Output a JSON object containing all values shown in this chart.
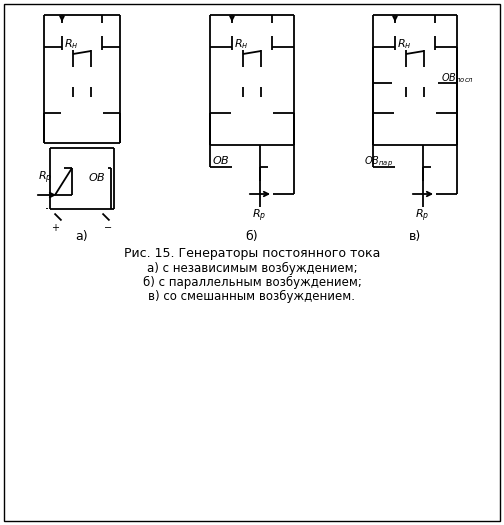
{
  "title": "Рис. 15. Генераторы постоянного тока",
  "caption_lines": [
    "а) с независимым возбуждением;",
    "б) с параллельным возбуждением;",
    "в) со смешанным возбуждением."
  ],
  "sublabels": [
    "а)",
    "б)",
    "в)"
  ],
  "bg_color": "#ffffff",
  "line_color": "#000000",
  "fig_width": 5.04,
  "fig_height": 5.25,
  "dpi": 100
}
